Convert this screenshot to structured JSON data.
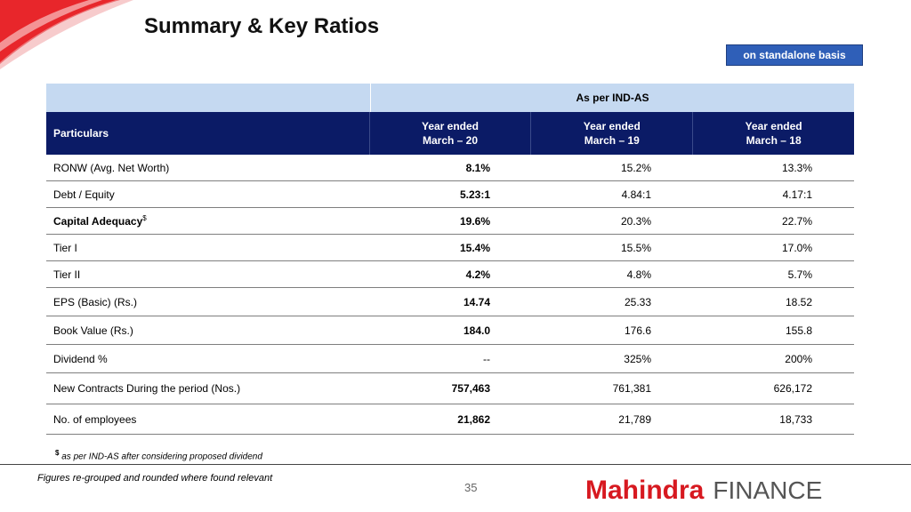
{
  "header": {
    "title": "Summary & Key Ratios",
    "basis_badge": "on standalone basis"
  },
  "table": {
    "group_header": "As per IND-AS",
    "particulars_header": "Particulars",
    "years": [
      {
        "line1": "Year ended",
        "line2": "March – 20"
      },
      {
        "line1": "Year ended",
        "line2": "March – 19"
      },
      {
        "line1": "Year ended",
        "line2": "March – 18"
      }
    ],
    "rows": [
      {
        "label": "RONW (Avg. Net Worth)",
        "sup": "",
        "bold": false,
        "values": [
          "8.1%",
          "15.2%",
          "13.3%"
        ]
      },
      {
        "label": "Debt / Equity",
        "sup": "",
        "bold": false,
        "values": [
          "5.23:1",
          "4.84:1",
          "4.17:1"
        ]
      },
      {
        "label": "Capital Adequacy",
        "sup": "$",
        "bold": true,
        "values": [
          "19.6%",
          "20.3%",
          "22.7%"
        ]
      },
      {
        "label": "Tier I",
        "sup": "",
        "bold": false,
        "values": [
          "15.4%",
          "15.5%",
          "17.0%"
        ]
      },
      {
        "label": "Tier II",
        "sup": "",
        "bold": false,
        "values": [
          "4.2%",
          "4.8%",
          "5.7%"
        ]
      },
      {
        "label": "EPS (Basic) (Rs.)",
        "sup": "",
        "bold": false,
        "values": [
          "14.74",
          "25.33",
          "18.52"
        ]
      },
      {
        "label": "Book Value (Rs.)",
        "sup": "",
        "bold": false,
        "values": [
          "184.0",
          "176.6",
          "155.8"
        ]
      },
      {
        "label": "Dividend %",
        "sup": "",
        "bold": false,
        "values": [
          "--",
          "325%",
          "200%"
        ]
      },
      {
        "label": "New Contracts During the period (Nos.)",
        "sup": "",
        "bold": false,
        "values": [
          "757,463",
          "761,381",
          "626,172"
        ]
      },
      {
        "label": "No. of employees",
        "sup": "",
        "bold": false,
        "values": [
          "21,862",
          "21,789",
          "18,733"
        ]
      }
    ]
  },
  "footnote": {
    "symbol": "$",
    "text": "as per IND-AS after considering proposed dividend"
  },
  "footer": {
    "note": "Figures re-grouped and rounded where found relevant",
    "page_number": "35",
    "logo_brand": "Mahindra",
    "logo_product": "FINANCE"
  },
  "colors": {
    "accent_red": "#d71920",
    "header_navy": "#0b1b66",
    "header_light": "#c5d9f1",
    "badge_blue": "#2f5fb8"
  }
}
